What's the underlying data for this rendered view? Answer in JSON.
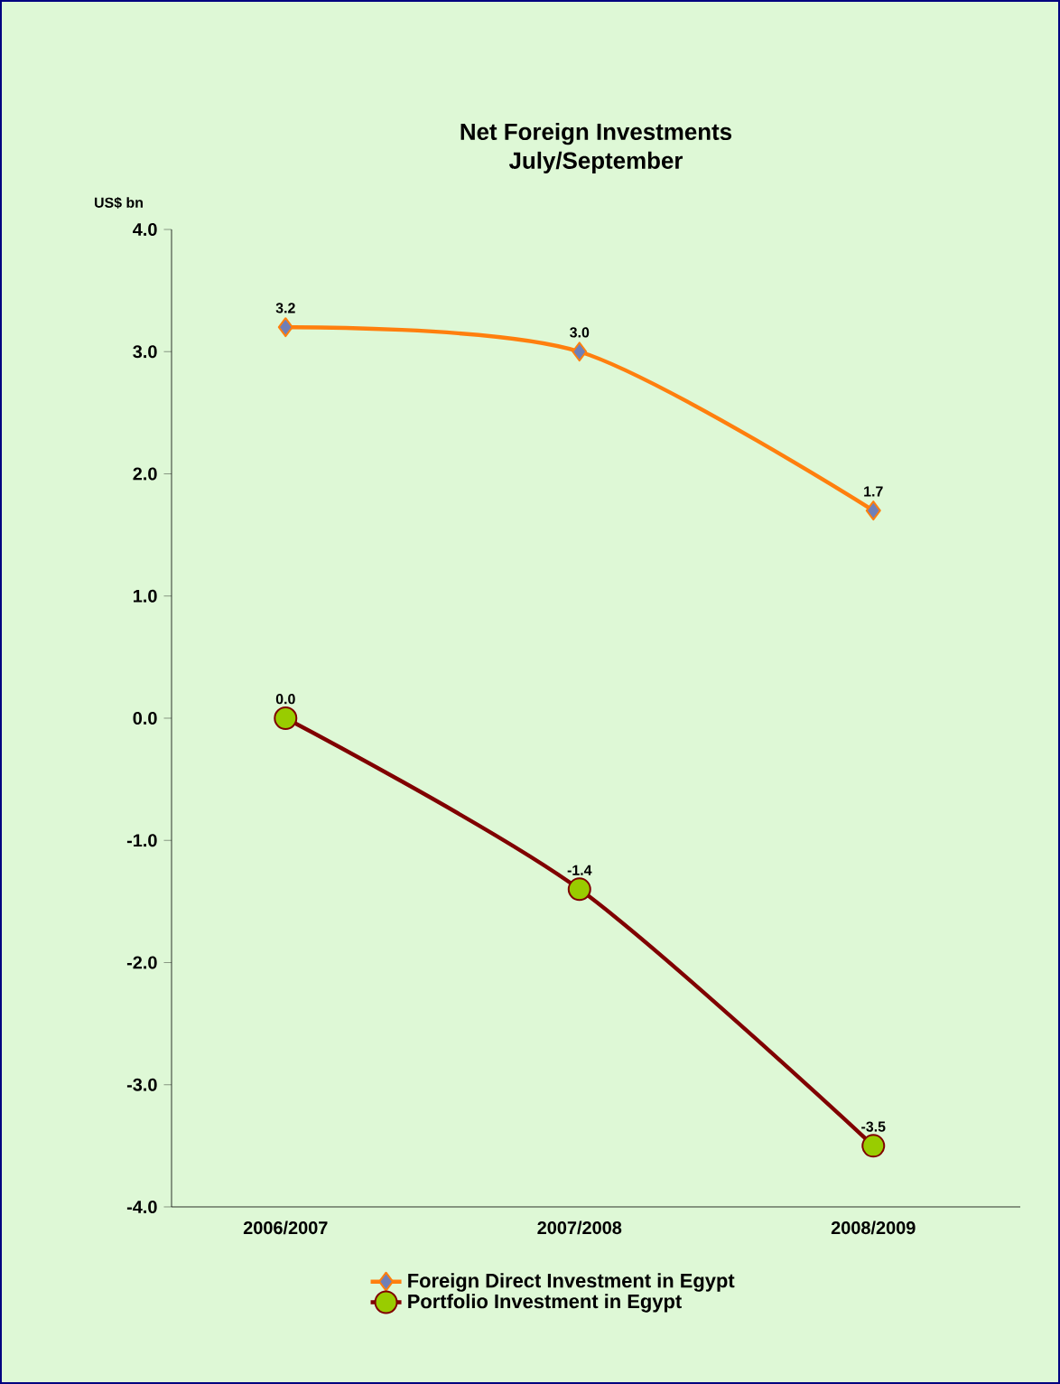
{
  "chart_data": {
    "type": "line",
    "title": "Net Foreign Investments",
    "subtitle": "July/September",
    "ylabel": "US$ bn",
    "categories": [
      "2006/2007",
      "2007/2008",
      "2008/2009"
    ],
    "series": [
      {
        "name": "Foreign Direct Investment in Egypt",
        "color": "#ff7f0e",
        "marker": "diamond",
        "values": [
          3.2,
          3.0,
          1.7
        ],
        "value_labels": [
          "3.2",
          "3.0",
          "1.7"
        ]
      },
      {
        "name": "Portfolio Investment in Egypt",
        "color": "#800000",
        "marker": "circle",
        "values": [
          0.0,
          -1.4,
          -3.5
        ],
        "value_labels": [
          "0.0",
          "-1.4",
          "-3.5"
        ]
      }
    ],
    "ylim": [
      -4,
      4
    ],
    "yticks": [
      {
        "value": -4,
        "label": "-4.0"
      },
      {
        "value": -3,
        "label": "-3.0"
      },
      {
        "value": -2,
        "label": "-2.0"
      },
      {
        "value": -1,
        "label": "-1.0"
      },
      {
        "value": 0,
        "label": "0.0"
      },
      {
        "value": 1,
        "label": "1.0"
      },
      {
        "value": 2,
        "label": "2.0"
      },
      {
        "value": 3,
        "label": "3.0"
      },
      {
        "value": 4,
        "label": "4.0"
      }
    ],
    "grid": false,
    "legend": "bottom",
    "line_style": "solid"
  }
}
